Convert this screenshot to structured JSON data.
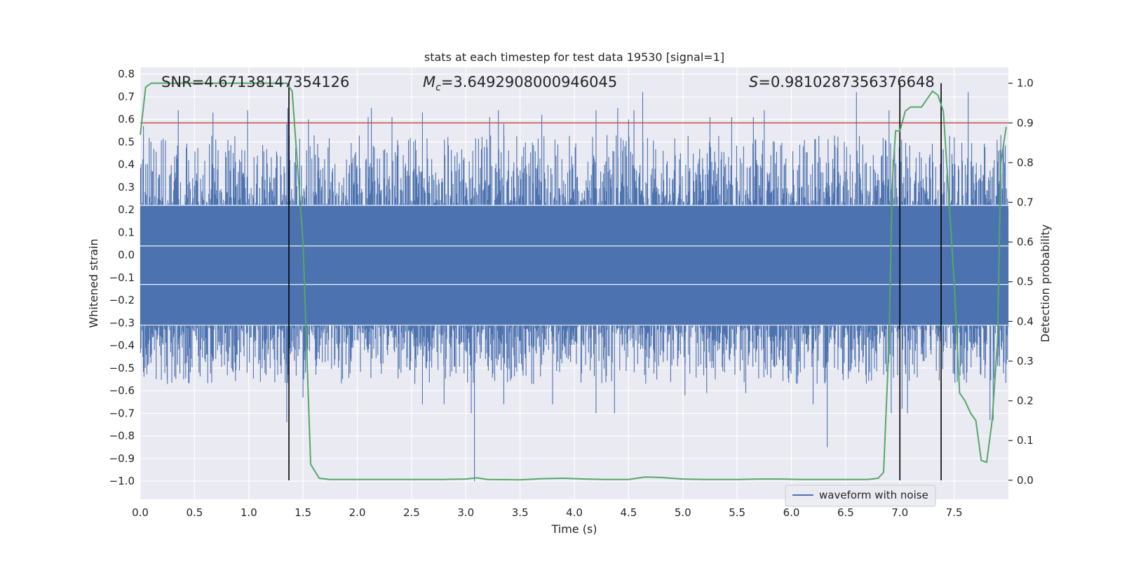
{
  "chart_data": {
    "type": "line",
    "title": "stats at each timestep for test data 19530 [signal=1]",
    "xlabel": "Time (s)",
    "ylabel": "Whitened strain",
    "ylabel_right": "Detection probability",
    "xlim": [
      0.0,
      8.0
    ],
    "ylim": [
      -1.08,
      0.83
    ],
    "ylim_right": [
      -0.048,
      1.04
    ],
    "x_ticks": [
      0.0,
      0.5,
      1.0,
      1.5,
      2.0,
      2.5,
      3.0,
      3.5,
      4.0,
      4.5,
      5.0,
      5.5,
      6.0,
      6.5,
      7.0,
      7.5
    ],
    "x_tick_labels": [
      "0.0",
      "0.5",
      "1.0",
      "1.5",
      "2.0",
      "2.5",
      "3.0",
      "3.5",
      "4.0",
      "4.5",
      "5.0",
      "5.5",
      "6.0",
      "6.5",
      "7.0",
      "7.5"
    ],
    "y_ticks": [
      0.8,
      0.7,
      0.6,
      0.5,
      0.4,
      0.3,
      0.2,
      0.1,
      0.0,
      -0.1,
      -0.2,
      -0.3,
      -0.4,
      -0.5,
      -0.6,
      -0.7,
      -0.8,
      -0.9,
      -1.0
    ],
    "y_tick_labels": [
      "0.8",
      "0.7",
      "0.6",
      "0.5",
      "0.4",
      "0.3",
      "0.2",
      "0.1",
      "0.0",
      "−0.1",
      "−0.2",
      "−0.3",
      "−0.4",
      "−0.5",
      "−0.6",
      "−0.7",
      "−0.8",
      "−0.9",
      "−1.0"
    ],
    "y2_ticks": [
      1.0,
      0.9,
      0.8,
      0.7,
      0.6,
      0.5,
      0.4,
      0.3,
      0.2,
      0.1,
      0.0
    ],
    "y2_tick_labels": [
      "1.0",
      "0.9",
      "0.8",
      "0.7",
      "0.6",
      "0.5",
      "0.4",
      "0.3",
      "0.2",
      "0.1",
      "0.0"
    ],
    "grid": true,
    "legend": {
      "position": "bottom-right",
      "entries": [
        "waveform with noise"
      ]
    },
    "annotations": {
      "snr": "SNR=4.67138147354126",
      "mc_symbol": "M",
      "mc_sub": "c",
      "mc_value": "=3.6492908000946045",
      "s_symbol": "S",
      "s_value": "=0.9810287356376648"
    },
    "threshold": {
      "axis": "right",
      "value": 0.9,
      "color": "#c44e52"
    },
    "vertical_lines_x": [
      1.37,
      7.0,
      7.38
    ],
    "waveform": {
      "name": "waveform with noise",
      "color": "#4c72b0",
      "band_bottom": -0.31,
      "band_top": 0.22,
      "peak_spikes": [
        [
          0.03,
          0.57
        ],
        [
          0.35,
          0.64
        ],
        [
          0.67,
          0.63
        ],
        [
          0.99,
          0.64
        ],
        [
          1.35,
          0.58
        ],
        [
          1.36,
          0.65
        ],
        [
          1.37,
          0.63
        ],
        [
          1.55,
          0.6
        ],
        [
          2.1,
          0.61
        ],
        [
          2.13,
          0.65
        ],
        [
          2.32,
          0.61
        ],
        [
          2.6,
          0.63
        ],
        [
          3.22,
          0.61
        ],
        [
          3.3,
          0.64
        ],
        [
          3.35,
          0.58
        ],
        [
          3.7,
          0.62
        ],
        [
          4.2,
          0.64
        ],
        [
          4.4,
          0.65
        ],
        [
          4.5,
          0.6
        ],
        [
          4.55,
          0.64
        ],
        [
          4.63,
          0.72
        ],
        [
          5.25,
          0.61
        ],
        [
          5.45,
          0.61
        ],
        [
          5.65,
          0.61
        ],
        [
          5.75,
          0.64
        ],
        [
          6.6,
          0.72
        ],
        [
          6.9,
          0.64
        ],
        [
          7.0,
          0.6
        ],
        [
          7.38,
          0.6
        ],
        [
          7.63,
          0.72
        ],
        [
          7.93,
          0.53
        ]
      ],
      "trough_spikes": [
        [
          0.25,
          -0.57
        ],
        [
          0.4,
          -0.55
        ],
        [
          1.35,
          -0.74
        ],
        [
          1.5,
          -0.63
        ],
        [
          2.6,
          -0.66
        ],
        [
          2.8,
          -0.66
        ],
        [
          3.05,
          -0.7
        ],
        [
          3.08,
          -1.0
        ],
        [
          3.35,
          -0.66
        ],
        [
          3.8,
          -0.66
        ],
        [
          4.2,
          -0.7
        ],
        [
          4.37,
          -0.7
        ],
        [
          5.02,
          -0.62
        ],
        [
          5.22,
          -0.61
        ],
        [
          5.58,
          -0.61
        ],
        [
          6.2,
          -0.66
        ],
        [
          6.33,
          -0.85
        ],
        [
          6.92,
          -0.7
        ],
        [
          7.02,
          -0.68
        ],
        [
          7.07,
          -0.7
        ],
        [
          7.83,
          -0.73
        ],
        [
          7.86,
          -0.73
        ]
      ]
    },
    "probability": {
      "color": "#55a868",
      "x": [
        0.0,
        0.05,
        0.1,
        0.2,
        0.5,
        0.9,
        1.0,
        1.3,
        1.35,
        1.4,
        1.5,
        1.57,
        1.65,
        1.75,
        2.0,
        2.5,
        2.8,
        3.0,
        3.1,
        3.2,
        3.5,
        3.7,
        3.9,
        4.1,
        4.3,
        4.5,
        4.65,
        4.8,
        4.9,
        5.0,
        5.2,
        5.5,
        5.7,
        5.9,
        6.1,
        6.3,
        6.5,
        6.7,
        6.8,
        6.85,
        6.9,
        6.93,
        6.96,
        7.0,
        7.05,
        7.1,
        7.2,
        7.25,
        7.3,
        7.35,
        7.4,
        7.45,
        7.5,
        7.55,
        7.6,
        7.65,
        7.7,
        7.75,
        7.8,
        7.85,
        7.9,
        7.93,
        7.98
      ],
      "y": [
        0.87,
        0.99,
        1.0,
        1.0,
        1.0,
        1.0,
        1.0,
        1.0,
        1.0,
        0.98,
        0.6,
        0.04,
        0.005,
        0.002,
        0.002,
        0.002,
        0.002,
        0.003,
        0.006,
        0.002,
        0.001,
        0.004,
        0.005,
        0.003,
        0.002,
        0.002,
        0.008,
        0.007,
        0.005,
        0.003,
        0.002,
        0.002,
        0.003,
        0.003,
        0.002,
        0.002,
        0.002,
        0.002,
        0.005,
        0.02,
        0.35,
        0.75,
        0.88,
        0.88,
        0.93,
        0.94,
        0.94,
        0.96,
        0.98,
        0.97,
        0.93,
        0.72,
        0.5,
        0.22,
        0.2,
        0.17,
        0.15,
        0.05,
        0.045,
        0.15,
        0.35,
        0.8,
        0.89
      ]
    }
  }
}
